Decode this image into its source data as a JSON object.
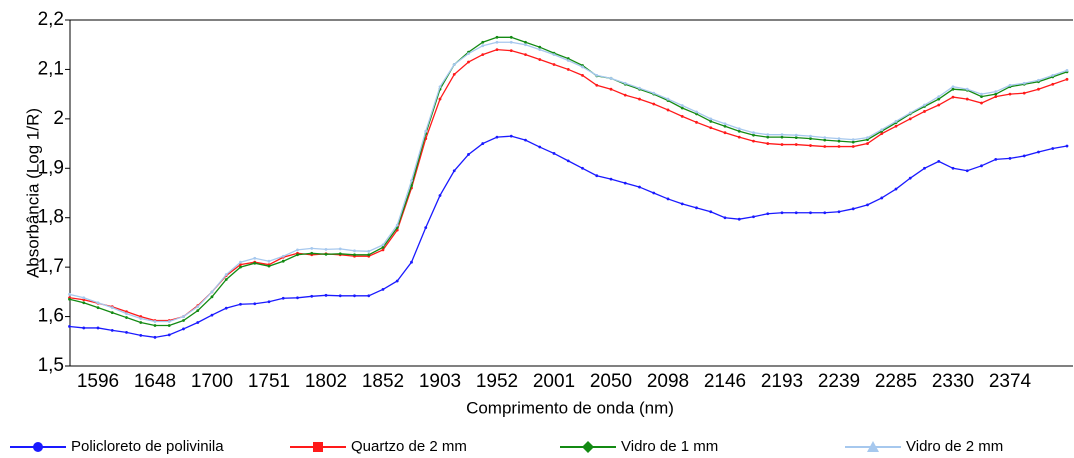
{
  "chart_data": {
    "type": "line",
    "x_label": "Comprimento de onda (nm)",
    "y_label": "Absorbância (Log 1/R)",
    "categories": [
      null,
      null,
      "1596",
      null,
      null,
      null,
      "1648",
      null,
      null,
      null,
      "1700",
      null,
      null,
      null,
      "1751",
      null,
      null,
      null,
      "1802",
      null,
      null,
      null,
      "1852",
      null,
      null,
      null,
      "1903",
      null,
      null,
      null,
      "1952",
      null,
      null,
      null,
      "2001",
      null,
      null,
      null,
      "2050",
      null,
      null,
      null,
      "2098",
      null,
      null,
      null,
      "2146",
      null,
      null,
      null,
      "2193",
      null,
      null,
      null,
      "2239",
      null,
      null,
      null,
      "2285",
      null,
      null,
      null,
      "2330",
      null,
      null,
      null,
      "2374",
      null,
      null,
      null,
      null
    ],
    "ylim": [
      1.5,
      2.2
    ],
    "yticks": [
      {
        "value": 1.5,
        "label": "1,5"
      },
      {
        "value": 1.6,
        "label": "1,6"
      },
      {
        "value": 1.7,
        "label": "1,7"
      },
      {
        "value": 1.8,
        "label": "1,8"
      },
      {
        "value": 1.9,
        "label": "1,9"
      },
      2,
      {
        "value": 2.1,
        "label": "2,1"
      },
      {
        "value": 2.2,
        "label": "2,2"
      }
    ],
    "grid": false,
    "legend": "bottom",
    "series": [
      {
        "name": "Policloreto de polivinila",
        "color": "#1a1aff",
        "marker": "circle",
        "values": [
          1.58,
          1.577,
          1.577,
          1.572,
          1.568,
          1.562,
          1.558,
          1.563,
          1.575,
          1.588,
          1.603,
          1.617,
          1.625,
          1.626,
          1.63,
          1.637,
          1.638,
          1.641,
          1.643,
          1.642,
          1.642,
          1.642,
          1.655,
          1.672,
          1.71,
          1.78,
          1.845,
          1.895,
          1.928,
          1.95,
          1.963,
          1.965,
          1.957,
          1.943,
          1.93,
          1.915,
          1.9,
          1.885,
          1.878,
          1.87,
          1.862,
          1.85,
          1.838,
          1.828,
          1.82,
          1.812,
          1.8,
          1.797,
          1.802,
          1.808,
          1.81,
          1.81,
          1.81,
          1.81,
          1.812,
          1.818,
          1.826,
          1.84,
          1.858,
          1.88,
          1.9,
          1.914,
          1.9,
          1.895,
          1.905,
          1.918,
          1.92,
          1.925,
          1.933,
          1.94,
          1.945
        ]
      },
      {
        "name": "Quartzo de 2 mm",
        "color": "#ff1a1a",
        "marker": "square",
        "values": [
          1.638,
          1.634,
          1.627,
          1.62,
          1.61,
          1.6,
          1.592,
          1.592,
          1.6,
          1.622,
          1.65,
          1.683,
          1.705,
          1.71,
          1.705,
          1.72,
          1.728,
          1.725,
          1.727,
          1.725,
          1.722,
          1.722,
          1.735,
          1.775,
          1.86,
          1.96,
          2.04,
          2.09,
          2.115,
          2.13,
          2.14,
          2.138,
          2.13,
          2.12,
          2.11,
          2.1,
          2.088,
          2.068,
          2.06,
          2.048,
          2.04,
          2.03,
          2.018,
          2.005,
          1.993,
          1.982,
          1.972,
          1.963,
          1.955,
          1.95,
          1.948,
          1.948,
          1.946,
          1.944,
          1.944,
          1.944,
          1.95,
          1.97,
          1.985,
          2.0,
          2.015,
          2.028,
          2.044,
          2.04,
          2.032,
          2.045,
          2.05,
          2.052,
          2.06,
          2.07,
          2.08
        ]
      },
      {
        "name": "Vidro de 1 mm",
        "color": "#138a13",
        "marker": "diamond",
        "values": [
          1.635,
          1.628,
          1.618,
          1.608,
          1.598,
          1.588,
          1.582,
          1.582,
          1.592,
          1.612,
          1.64,
          1.675,
          1.7,
          1.708,
          1.702,
          1.712,
          1.725,
          1.728,
          1.726,
          1.727,
          1.725,
          1.725,
          1.74,
          1.78,
          1.865,
          1.97,
          2.06,
          2.11,
          2.135,
          2.155,
          2.165,
          2.165,
          2.155,
          2.145,
          2.133,
          2.122,
          2.108,
          2.087,
          2.082,
          2.07,
          2.06,
          2.05,
          2.037,
          2.022,
          2.01,
          1.995,
          1.985,
          1.975,
          1.967,
          1.963,
          1.963,
          1.962,
          1.96,
          1.957,
          1.955,
          1.953,
          1.958,
          1.975,
          1.992,
          2.01,
          2.025,
          2.04,
          2.06,
          2.058,
          2.045,
          2.05,
          2.065,
          2.07,
          2.075,
          2.085,
          2.095
        ]
      },
      {
        "name": "Vidro de 2 mm",
        "color": "#a6c8ee",
        "marker": "triangle",
        "values": [
          1.645,
          1.638,
          1.628,
          1.618,
          1.606,
          1.596,
          1.59,
          1.59,
          1.6,
          1.62,
          1.65,
          1.685,
          1.71,
          1.718,
          1.712,
          1.722,
          1.735,
          1.738,
          1.736,
          1.737,
          1.733,
          1.732,
          1.745,
          1.785,
          1.875,
          1.975,
          2.065,
          2.11,
          2.132,
          2.148,
          2.155,
          2.155,
          2.15,
          2.14,
          2.13,
          2.118,
          2.105,
          2.088,
          2.082,
          2.072,
          2.062,
          2.052,
          2.04,
          2.027,
          2.014,
          2.0,
          1.99,
          1.98,
          1.972,
          1.968,
          1.968,
          1.967,
          1.965,
          1.962,
          1.96,
          1.958,
          1.962,
          1.978,
          1.995,
          2.012,
          2.028,
          2.045,
          2.065,
          2.06,
          2.05,
          2.055,
          2.068,
          2.072,
          2.078,
          2.088,
          2.098
        ]
      }
    ]
  }
}
